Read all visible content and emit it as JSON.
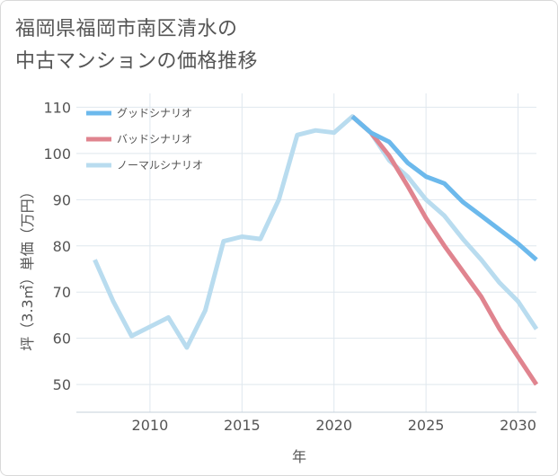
{
  "title_lines": [
    "福岡県福岡市南区清水の",
    "中古マンションの価格推移"
  ],
  "chart_data": {
    "type": "line",
    "xlabel": "年",
    "ylabel": "坪（3.3㎡）単価（万円）",
    "xlim": [
      2006,
      2031
    ],
    "ylim": [
      44,
      113
    ],
    "xticks": [
      2010,
      2015,
      2020,
      2025,
      2030
    ],
    "yticks": [
      50,
      60,
      70,
      80,
      90,
      100,
      110
    ],
    "grid": true,
    "legend_position": "top-left",
    "series": [
      {
        "name": "グッドシナリオ",
        "color": "#6cb9ec",
        "x": [
          2021,
          2022,
          2023,
          2024,
          2025,
          2026,
          2027,
          2028,
          2029,
          2030,
          2031
        ],
        "y": [
          108,
          104.5,
          102.5,
          98,
          95,
          93.5,
          89.5,
          86.5,
          83.5,
          80.5,
          77
        ]
      },
      {
        "name": "バッドシナリオ",
        "color": "#e0848f",
        "x": [
          2021,
          2022,
          2023,
          2024,
          2025,
          2026,
          2027,
          2028,
          2029,
          2030,
          2031
        ],
        "y": [
          108,
          104.5,
          99.5,
          93,
          86,
          80,
          74.5,
          69,
          62,
          56,
          50
        ]
      },
      {
        "name": "ノーマルシナリオ",
        "color": "#b9dcef",
        "x": [
          2007,
          2008,
          2009,
          2010,
          2011,
          2012,
          2013,
          2014,
          2015,
          2016,
          2017,
          2018,
          2019,
          2020,
          2021,
          2022,
          2023,
          2024,
          2025,
          2026,
          2027,
          2028,
          2029,
          2030,
          2031
        ],
        "y": [
          77,
          68,
          60.5,
          62.5,
          64.5,
          58,
          66,
          81,
          82,
          81.5,
          90,
          104,
          105,
          104.5,
          108,
          104.5,
          98.5,
          95,
          90,
          86.5,
          81.5,
          77,
          72,
          68,
          62
        ]
      }
    ]
  }
}
